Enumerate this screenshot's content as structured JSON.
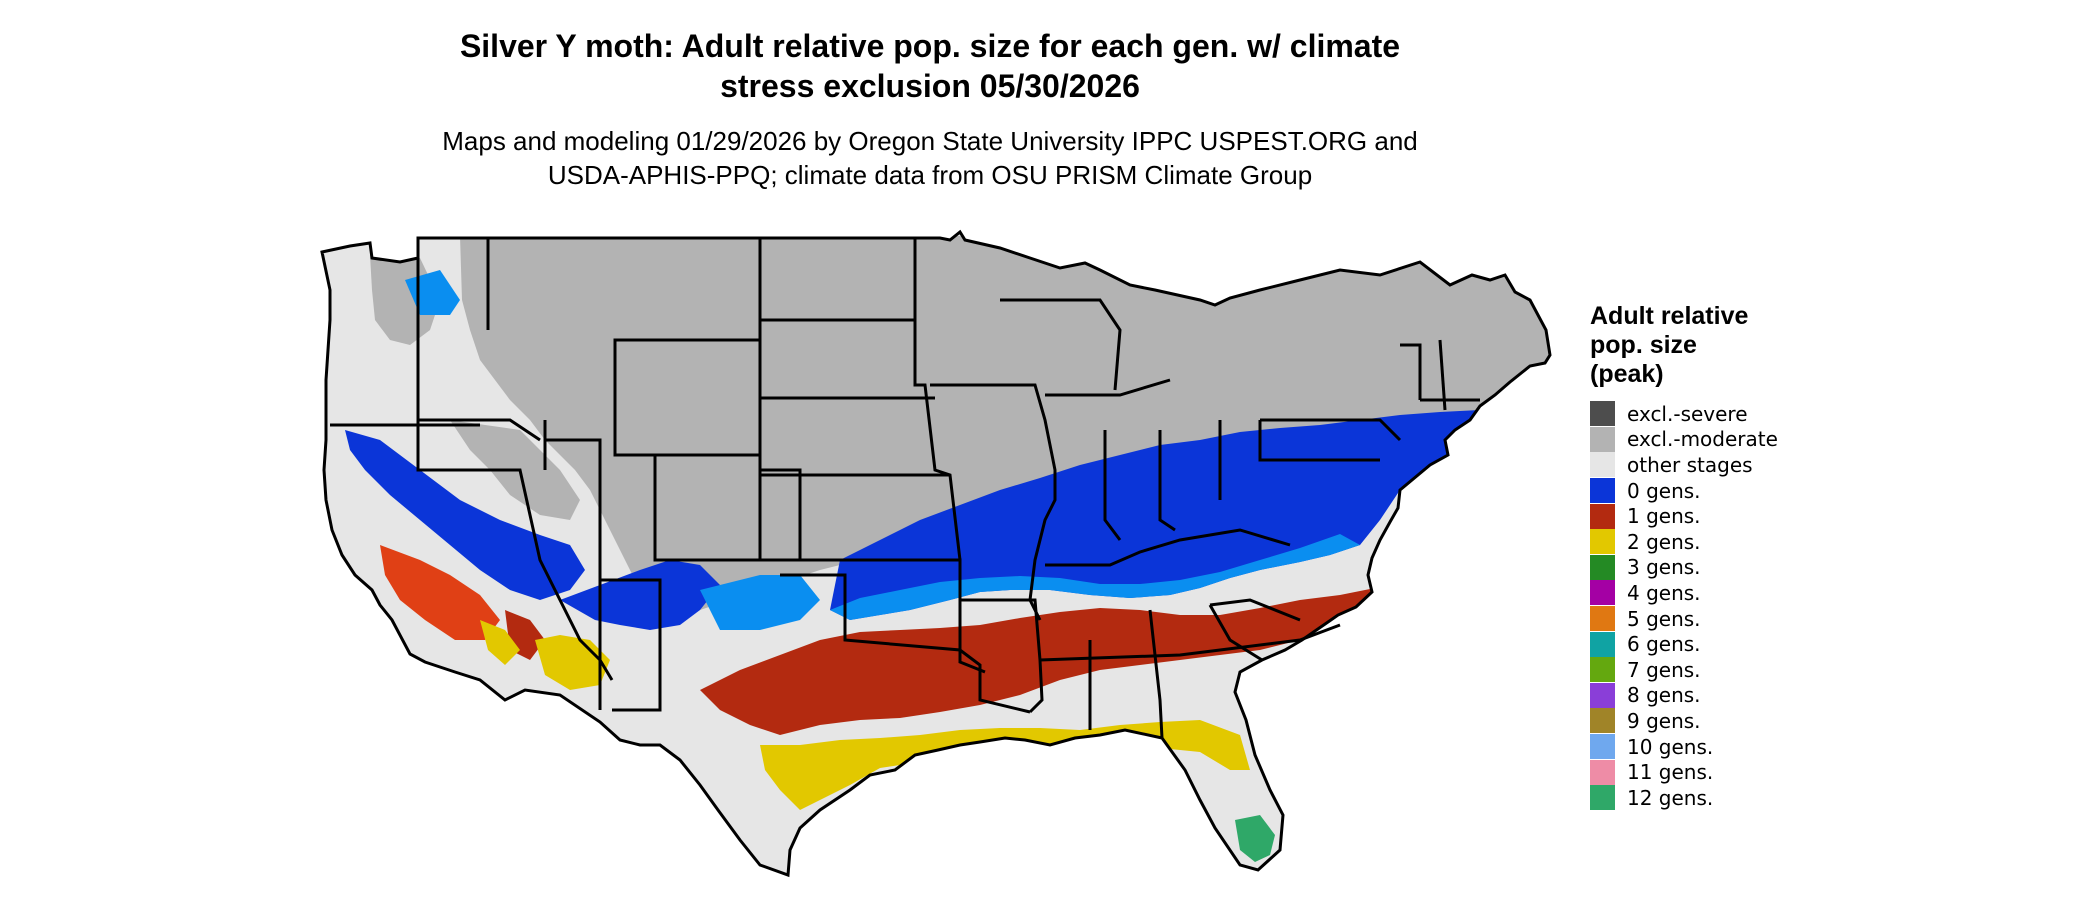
{
  "title_lines": [
    "Silver Y moth: Adult relative pop. size for each gen. w/ climate",
    "stress exclusion 05/30/2026"
  ],
  "subtitle_lines": [
    "Maps and modeling 01/29/2026 by Oregon State University IPPC USPEST.ORG and",
    "USDA-APHIS-PPQ; climate data from OSU PRISM Climate Group"
  ],
  "legend": {
    "title_lines": [
      "Adult relative",
      "pop. size",
      "(peak)"
    ],
    "items": [
      {
        "label": "excl.-severe",
        "color": "#4d4d4d"
      },
      {
        "label": "excl.-moderate",
        "color": "#b3b3b3"
      },
      {
        "label": "other stages",
        "color": "#e6e6e6"
      },
      {
        "label": "0 gens.",
        "color": "#0b35d8"
      },
      {
        "label": "1 gens.",
        "color": "#b32a10"
      },
      {
        "label": "2 gens.",
        "color": "#e2c800"
      },
      {
        "label": "3 gens.",
        "color": "#248a24"
      },
      {
        "label": "4 gens.",
        "color": "#a400a4"
      },
      {
        "label": "5 gens.",
        "color": "#e07812"
      },
      {
        "label": "6 gens.",
        "color": "#10a3a3"
      },
      {
        "label": "7 gens.",
        "color": "#64a80f"
      },
      {
        "label": "8 gens.",
        "color": "#8a3ed8"
      },
      {
        "label": "9 gens.",
        "color": "#a08428"
      },
      {
        "label": "10 gens.",
        "color": "#6fa8ee"
      },
      {
        "label": "11 gens.",
        "color": "#ee8ca6"
      },
      {
        "label": "12 gens.",
        "color": "#2fa868"
      }
    ]
  },
  "map_colors": {
    "background": "#e6e6e6",
    "moderate": "#b3b3b3",
    "zero_dark": "#0b35d8",
    "zero_light": "#0a8ef0",
    "one": "#b32a10",
    "one_light": "#e04015",
    "two": "#e2c800",
    "twelve": "#2fa868",
    "border": "#000000"
  }
}
